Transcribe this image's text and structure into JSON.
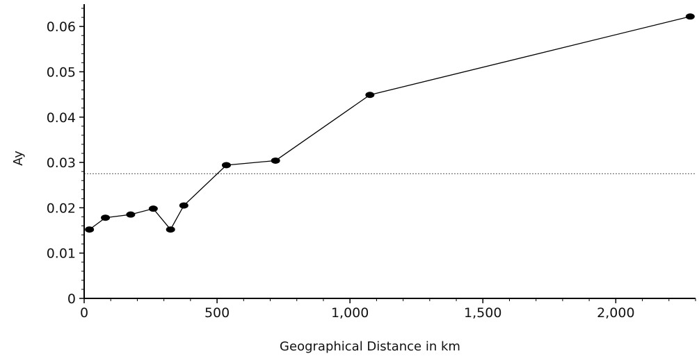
{
  "chart_data": {
    "type": "line",
    "title": "",
    "xlabel": "Geographical Distance in km",
    "ylabel": "Ay",
    "xlim": [
      0,
      2300
    ],
    "ylim": [
      0,
      0.064
    ],
    "x_ticks": [
      0,
      500,
      1000,
      1500,
      2000
    ],
    "x_tick_labels": [
      "0",
      "500",
      "1,000",
      "1,500",
      "2,000"
    ],
    "y_ticks": [
      0,
      0.01,
      0.02,
      0.03,
      0.04,
      0.05,
      0.06
    ],
    "y_tick_labels": [
      "0",
      "0.01",
      "0.02",
      "0.03",
      "0.04",
      "0.05",
      "0.06"
    ],
    "reference_line": {
      "y": 0.0275,
      "style": "dotted"
    },
    "grid": false,
    "series": [
      {
        "x": [
          20,
          80,
          175,
          260,
          325,
          375,
          535,
          720,
          1075,
          2280
        ],
        "y": [
          0.0152,
          0.0178,
          0.0185,
          0.0198,
          0.0152,
          0.0205,
          0.0294,
          0.0304,
          0.0449,
          0.0622
        ]
      }
    ]
  }
}
